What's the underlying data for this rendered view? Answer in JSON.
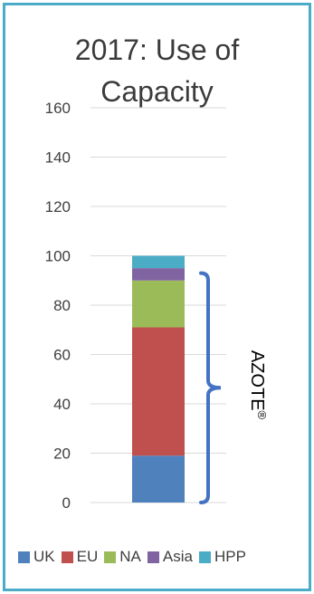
{
  "chart_data": {
    "type": "bar",
    "stacked": true,
    "title": "2017: Use of Capacity",
    "title_lines": [
      "2017: Use of",
      "Capacity"
    ],
    "categories": [
      ""
    ],
    "series": [
      {
        "name": "UK",
        "values": [
          19
        ],
        "color": "#4F81BD"
      },
      {
        "name": "EU",
        "values": [
          52
        ],
        "color": "#C0504D"
      },
      {
        "name": "NA",
        "values": [
          19
        ],
        "color": "#9BBB59"
      },
      {
        "name": "Asia",
        "values": [
          5
        ],
        "color": "#8064A2"
      },
      {
        "name": "HPP",
        "values": [
          5
        ],
        "color": "#4BACC6"
      }
    ],
    "ylim": [
      0,
      160
    ],
    "yticks": [
      "0",
      "20",
      "40",
      "60",
      "80",
      "100",
      "120",
      "140",
      "160"
    ],
    "grid": true,
    "legend_position": "bottom",
    "annotation": {
      "text": "AZOTE",
      "superscript": "®",
      "bracket_range": [
        0,
        93
      ]
    }
  },
  "colors": {
    "border": "#4AACC6",
    "gridline": "#d9d9d9",
    "bracket": "#4472C4",
    "text": "#404040"
  }
}
